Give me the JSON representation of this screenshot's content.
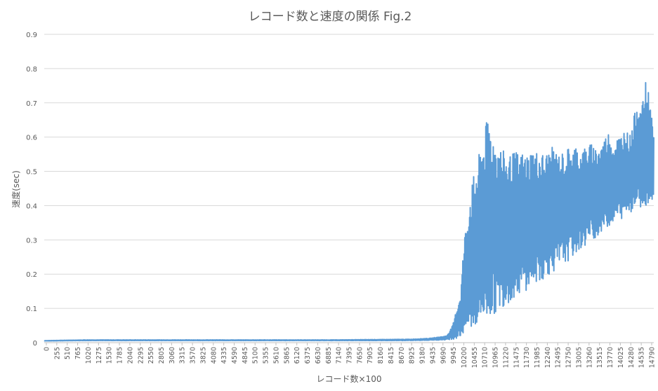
{
  "chart_data": {
    "type": "line",
    "title": "レコード数と速度の関係 Fig.2",
    "xlabel": "レコード数×100",
    "ylabel": "速度(sec)",
    "ylim": [
      0,
      0.9
    ],
    "yticks": [
      "0",
      "0.1",
      "0.2",
      "0.3",
      "0.4",
      "0.5",
      "0.6",
      "0.7",
      "0.8",
      "0.9"
    ],
    "xticks": [
      "0",
      "255",
      "510",
      "765",
      "1020",
      "1275",
      "1530",
      "1785",
      "2040",
      "2295",
      "2550",
      "2805",
      "3060",
      "3315",
      "3570",
      "3825",
      "4080",
      "4335",
      "4590",
      "4845",
      "5100",
      "5355",
      "5610",
      "5865",
      "6120",
      "6375",
      "6630",
      "6885",
      "7140",
      "7395",
      "7650",
      "7905",
      "8160",
      "8415",
      "8670",
      "8925",
      "9180",
      "9435",
      "9690",
      "9945",
      "10200",
      "10455",
      "10710",
      "10965",
      "11220",
      "11475",
      "11730",
      "11985",
      "12240",
      "12495",
      "12750",
      "13005",
      "13260",
      "13515",
      "13770",
      "14025",
      "14280",
      "14535",
      "14790"
    ],
    "xlim": [
      0,
      15000
    ],
    "grid": true,
    "series_color": "#5b9bd5",
    "series": [
      {
        "x": [
          0,
          1000,
          2000,
          3000,
          4000,
          5000,
          6000,
          7000,
          8000,
          9000,
          9500,
          9900,
          10050,
          10150,
          10250,
          10300,
          10350,
          10400,
          10450,
          10500,
          10550,
          10600,
          10650,
          10700,
          10750,
          10800,
          10850,
          10900,
          10950,
          11000,
          11100,
          11200,
          11300,
          11400,
          11500,
          11600,
          11700,
          11800,
          11900,
          12000,
          12100,
          12200,
          12300,
          12400,
          12500,
          12600,
          12700,
          12800,
          12900,
          13000,
          13100,
          13200,
          13300,
          13400,
          13500,
          13600,
          13700,
          13800,
          13900,
          14000,
          14100,
          14200,
          14300,
          14400,
          14500,
          14600,
          14700,
          14800,
          14900,
          15000
        ],
        "y_low": [
          0.005,
          0.006,
          0.006,
          0.006,
          0.006,
          0.006,
          0.006,
          0.006,
          0.006,
          0.006,
          0.007,
          0.008,
          0.01,
          0.012,
          0.015,
          0.02,
          0.025,
          0.03,
          0.03,
          0.03,
          0.035,
          0.04,
          0.045,
          0.05,
          0.05,
          0.055,
          0.06,
          0.065,
          0.07,
          0.075,
          0.085,
          0.095,
          0.105,
          0.115,
          0.12,
          0.13,
          0.14,
          0.15,
          0.155,
          0.165,
          0.17,
          0.18,
          0.185,
          0.195,
          0.205,
          0.21,
          0.22,
          0.23,
          0.24,
          0.25,
          0.26,
          0.27,
          0.28,
          0.29,
          0.3,
          0.31,
          0.32,
          0.33,
          0.34,
          0.35,
          0.355,
          0.36,
          0.37,
          0.38,
          0.385,
          0.39,
          0.395,
          0.4,
          0.41,
          0.42
        ],
        "y_high": [
          0.006,
          0.008,
          0.008,
          0.008,
          0.008,
          0.008,
          0.008,
          0.008,
          0.009,
          0.01,
          0.013,
          0.02,
          0.05,
          0.1,
          0.15,
          0.25,
          0.32,
          0.36,
          0.42,
          0.45,
          0.48,
          0.5,
          0.52,
          0.55,
          0.58,
          0.6,
          0.63,
          0.65,
          0.67,
          0.62,
          0.6,
          0.58,
          0.56,
          0.55,
          0.55,
          0.56,
          0.55,
          0.56,
          0.55,
          0.57,
          0.56,
          0.56,
          0.55,
          0.56,
          0.57,
          0.56,
          0.55,
          0.56,
          0.57,
          0.57,
          0.58,
          0.56,
          0.57,
          0.58,
          0.58,
          0.57,
          0.58,
          0.6,
          0.62,
          0.58,
          0.6,
          0.61,
          0.63,
          0.6,
          0.65,
          0.72,
          0.68,
          0.76,
          0.73,
          0.6
        ]
      }
    ]
  }
}
